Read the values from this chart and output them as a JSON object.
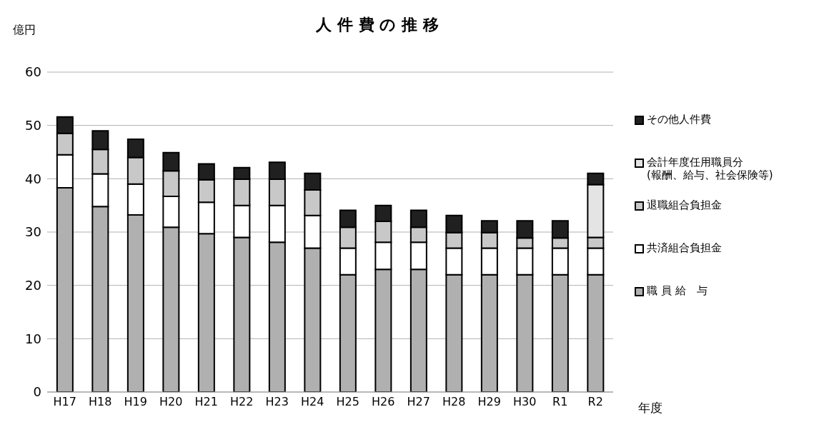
{
  "chart_data": {
    "type": "bar",
    "title": "人 件 費 の 推 移",
    "ylabel": "億円",
    "xlabel": "年度",
    "stacked": true,
    "grid": "y",
    "legend": "right",
    "categories": [
      "H17",
      "H18",
      "H19",
      "H20",
      "H21",
      "H22",
      "H23",
      "H24",
      "H25",
      "H26",
      "H27",
      "H28",
      "H29",
      "H30",
      "R1",
      "R2"
    ],
    "ylim": [
      0,
      60
    ],
    "yticks": [
      0,
      10,
      20,
      30,
      40,
      50,
      60
    ],
    "series": [
      {
        "name": "職 員 給　与",
        "color": "#b0b0b0",
        "values": [
          38.3,
          34.8,
          33.2,
          30.9,
          29.7,
          29.0,
          28.1,
          27.0,
          22,
          23,
          23,
          22,
          22,
          22,
          22,
          22
        ]
      },
      {
        "name": "共済組合負担金",
        "color": "#ffffff",
        "values": [
          6.2,
          6.1,
          5.8,
          5.8,
          5.9,
          6.0,
          6.9,
          6.1,
          5,
          5.1,
          5.1,
          5,
          5,
          5,
          5,
          5
        ]
      },
      {
        "name": "退職組合負担金",
        "color": "#c8c8c8",
        "values": [
          4.0,
          4.6,
          5.0,
          4.8,
          4.2,
          4.9,
          4.9,
          4.8,
          3.9,
          3.9,
          2.8,
          2.9,
          2.9,
          1.9,
          1.9,
          2.0
        ]
      },
      {
        "name": "会計年度任用職員分\n(報酬、給与、社会保険等)",
        "color": "#e4e4e4",
        "values": [
          null,
          null,
          null,
          null,
          null,
          null,
          null,
          null,
          null,
          null,
          null,
          null,
          null,
          null,
          null,
          9.9
        ]
      },
      {
        "name": "その他人件費",
        "color": "#202020",
        "values": [
          3.1,
          3.5,
          3.4,
          3.4,
          3.0,
          2.2,
          3.2,
          3.1,
          3.2,
          3.0,
          3.2,
          3.2,
          2.2,
          3.2,
          3.2,
          2.1
        ]
      }
    ]
  }
}
